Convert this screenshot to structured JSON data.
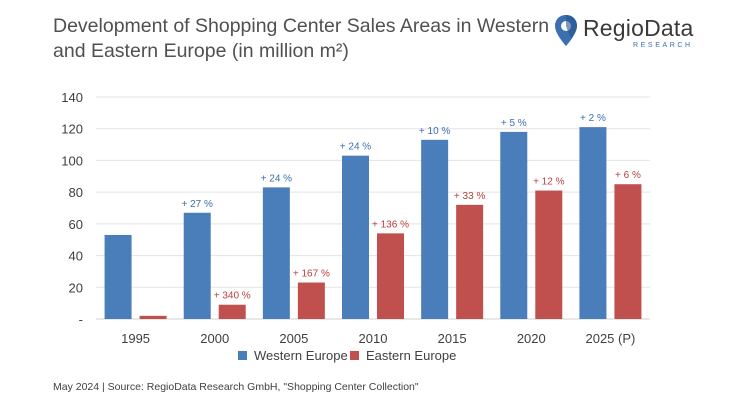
{
  "title": "Development of Shopping Center Sales Areas in Western and Eastern Europe (in million m²)",
  "logo": {
    "name": "RegioData",
    "sub": "RESEARCH",
    "icon": "location-pin-icon"
  },
  "footer": "May 2024  |  Source: RegioData Research GmbH, \"Shopping Center Collection\"",
  "chart_data": {
    "type": "bar",
    "title": "Development of Shopping Center Sales Areas in Western and Eastern Europe (in million m²)",
    "categories": [
      "1995",
      "2000",
      "2005",
      "2010",
      "2015",
      "2020",
      "2025 (P)"
    ],
    "ylim": [
      0,
      140
    ],
    "yticks": [
      "-",
      "20",
      "40",
      "60",
      "80",
      "100",
      "120",
      "140"
    ],
    "ytick_values": [
      0,
      20,
      40,
      60,
      80,
      100,
      120,
      140
    ],
    "grid": true,
    "legend_position": "bottom",
    "series": [
      {
        "name": "Western Europe",
        "color": "#4a7ebb",
        "values": [
          53,
          67,
          83,
          103,
          113,
          118,
          121
        ],
        "labels": [
          "",
          "+ 27 %",
          "+ 24 %",
          "+ 24 %",
          "+ 10 %",
          "+ 5 %",
          "+ 2 %"
        ]
      },
      {
        "name": "Eastern Europe",
        "color": "#c0504d",
        "values": [
          2,
          9,
          23,
          54,
          72,
          81,
          85
        ],
        "labels": [
          "",
          "+ 340 %",
          "+ 167 %",
          "+ 136 %",
          "+ 33 %",
          "+ 12 %",
          "+ 6 %"
        ]
      }
    ]
  }
}
